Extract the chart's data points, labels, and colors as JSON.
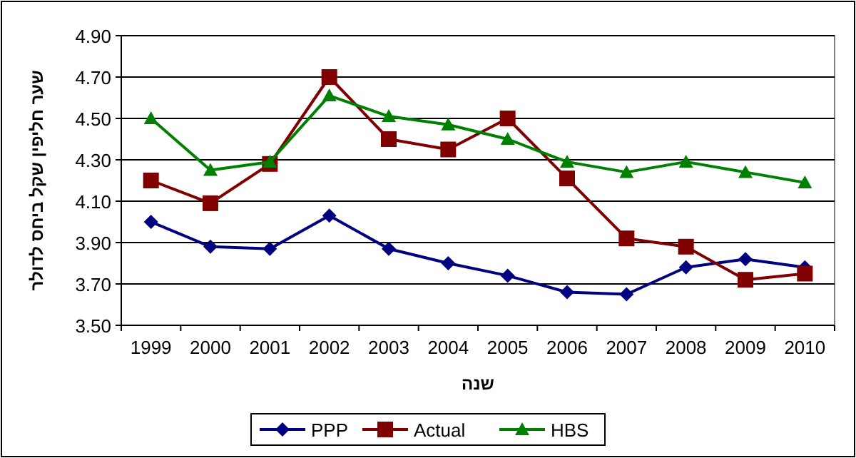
{
  "chart_data": {
    "type": "line",
    "xlabel": "שנה",
    "ylabel": "שער חליפין שקל ביחס לדולר",
    "categories": [
      "1999",
      "2000",
      "2001",
      "2002",
      "2003",
      "2004",
      "2005",
      "2006",
      "2007",
      "2008",
      "2009",
      "2010"
    ],
    "series": [
      {
        "name": "PPP",
        "color": "#000080",
        "marker": "diamond",
        "values": [
          4.0,
          3.88,
          3.87,
          4.03,
          3.87,
          3.8,
          3.74,
          3.66,
          3.65,
          3.78,
          3.82,
          3.78
        ]
      },
      {
        "name": "Actual",
        "color": "#800000",
        "marker": "square",
        "values": [
          4.2,
          4.09,
          4.28,
          4.7,
          4.4,
          4.35,
          4.5,
          4.21,
          3.92,
          3.88,
          3.72,
          3.75
        ]
      },
      {
        "name": "HBS",
        "color": "#008000",
        "marker": "triangle",
        "values": [
          4.5,
          4.25,
          4.29,
          4.61,
          4.51,
          4.47,
          4.4,
          4.29,
          4.24,
          4.29,
          4.24,
          4.19
        ]
      }
    ],
    "ylim": [
      3.5,
      4.9
    ],
    "yticks": [
      {
        "value": 3.5,
        "label": "3.50"
      },
      {
        "value": 3.7,
        "label": "3.70"
      },
      {
        "value": 3.9,
        "label": "3.90"
      },
      {
        "value": 4.1,
        "label": "4.10"
      },
      {
        "value": 4.3,
        "label": "4.30"
      },
      {
        "value": 4.5,
        "label": "4.50"
      },
      {
        "value": 4.7,
        "label": "4.70"
      },
      {
        "value": 4.9,
        "label": "4.90"
      }
    ],
    "grid": "y",
    "legend": "bottom",
    "line_style": "solid"
  }
}
